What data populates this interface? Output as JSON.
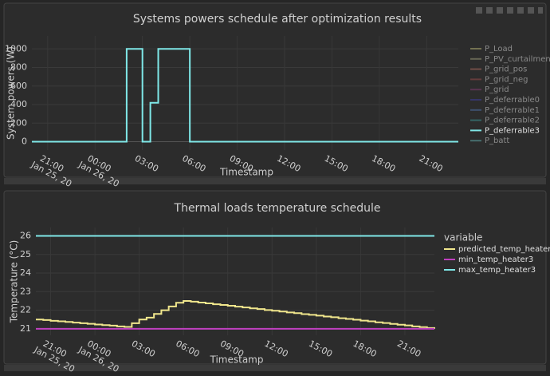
{
  "chart_data": [
    {
      "type": "line",
      "title": "Systems powers schedule after optimization results",
      "x_label": "Timestamp",
      "y_label": "System powers (W)",
      "line_shape": "hv",
      "grid": true,
      "categories": [
        null,
        null,
        "21:00\nJan 25, 20",
        null,
        null,
        null,
        null,
        null,
        "00:00\nJan 26, 20",
        null,
        null,
        null,
        null,
        null,
        "03:00",
        null,
        null,
        null,
        null,
        null,
        "06:00",
        null,
        null,
        null,
        null,
        null,
        "09:00",
        null,
        null,
        null,
        null,
        null,
        "12:00",
        null,
        null,
        null,
        null,
        null,
        "15:00",
        null,
        null,
        null,
        null,
        null,
        "18:00",
        null,
        null,
        null,
        null,
        null,
        "21:00",
        null,
        null,
        null,
        null
      ],
      "ylim": [
        -90,
        1140
      ],
      "yticks": [
        0,
        200,
        400,
        600,
        800,
        1000
      ],
      "series": [
        {
          "name": "P_Load",
          "color": "#a3a06a",
          "hidden": true
        },
        {
          "name": "P_PV_curtailment",
          "color": "#8e8c70",
          "hidden": true
        },
        {
          "name": "P_grid_pos",
          "color": "#a0645a",
          "hidden": true
        },
        {
          "name": "P_grid_neg",
          "color": "#8c4848",
          "hidden": true
        },
        {
          "name": "P_grid",
          "color": "#7a3a6a",
          "hidden": true
        },
        {
          "name": "P_deferrable0",
          "color": "#3c3c90",
          "hidden": true
        },
        {
          "name": "P_deferrable1",
          "color": "#4a6a9c",
          "hidden": true
        },
        {
          "name": "P_deferrable2",
          "color": "#3a8c8c",
          "hidden": true
        },
        {
          "name": "P_deferrable3",
          "color": "#7fe8e8",
          "hidden": false,
          "values": [
            0,
            0,
            0,
            0,
            0,
            0,
            0,
            0,
            0,
            0,
            0,
            0,
            1000,
            1000,
            0,
            420,
            1000,
            1000,
            1000,
            1000,
            0,
            0,
            0,
            0,
            0,
            0,
            0,
            0,
            0,
            0,
            0,
            0,
            0,
            0,
            0,
            0,
            0,
            0,
            0,
            0,
            0,
            0,
            0,
            0,
            0,
            0,
            0,
            0,
            0,
            0,
            0,
            0,
            0,
            0,
            0
          ]
        },
        {
          "name": "P_batt",
          "color": "#5a9c9c",
          "hidden": true
        }
      ]
    },
    {
      "type": "line",
      "title": "Thermal loads temperature schedule",
      "x_label": "Timestamp",
      "y_label": "Temperature (°C)",
      "legend_title": "variable",
      "line_shape": "hv",
      "grid": true,
      "categories": [
        null,
        null,
        "21:00\nJan 25, 20",
        null,
        null,
        null,
        null,
        null,
        "00:00\nJan 26, 20",
        null,
        null,
        null,
        null,
        null,
        "03:00",
        null,
        null,
        null,
        null,
        null,
        "06:00",
        null,
        null,
        null,
        null,
        null,
        "09:00",
        null,
        null,
        null,
        null,
        null,
        "12:00",
        null,
        null,
        null,
        null,
        null,
        "15:00",
        null,
        null,
        null,
        null,
        null,
        "18:00",
        null,
        null,
        null,
        null,
        null,
        "21:00",
        null,
        null,
        null,
        null
      ],
      "ylim": [
        20.65,
        26.45
      ],
      "yticks": [
        21,
        22,
        23,
        24,
        25,
        26
      ],
      "series": [
        {
          "name": "predicted_temp_heater3",
          "color": "#f0e68c",
          "hidden": false,
          "values": [
            21.5,
            21.47,
            21.43,
            21.4,
            21.37,
            21.33,
            21.3,
            21.27,
            21.23,
            21.2,
            21.17,
            21.13,
            21.1,
            21.3,
            21.5,
            21.6,
            21.8,
            22.0,
            22.2,
            22.4,
            22.5,
            22.46,
            22.41,
            22.37,
            22.32,
            22.28,
            22.24,
            22.19,
            22.15,
            22.1,
            22.06,
            22.01,
            21.97,
            21.93,
            21.88,
            21.84,
            21.79,
            21.75,
            21.71,
            21.66,
            21.62,
            21.57,
            21.53,
            21.49,
            21.44,
            21.4,
            21.35,
            21.31,
            21.26,
            21.22,
            21.18,
            21.13,
            21.09,
            21.04,
            21.0
          ]
        },
        {
          "name": "min_temp_heater3",
          "color": "#c040c0",
          "hidden": false,
          "values": [
            21,
            21,
            21,
            21,
            21,
            21,
            21,
            21,
            21,
            21,
            21,
            21,
            21,
            21,
            21,
            21,
            21,
            21,
            21,
            21,
            21,
            21,
            21,
            21,
            21,
            21,
            21,
            21,
            21,
            21,
            21,
            21,
            21,
            21,
            21,
            21,
            21,
            21,
            21,
            21,
            21,
            21,
            21,
            21,
            21,
            21,
            21,
            21,
            21,
            21,
            21,
            21,
            21,
            21,
            21
          ]
        },
        {
          "name": "max_temp_heater3",
          "color": "#7fe8e8",
          "hidden": false,
          "values": [
            26,
            26,
            26,
            26,
            26,
            26,
            26,
            26,
            26,
            26,
            26,
            26,
            26,
            26,
            26,
            26,
            26,
            26,
            26,
            26,
            26,
            26,
            26,
            26,
            26,
            26,
            26,
            26,
            26,
            26,
            26,
            26,
            26,
            26,
            26,
            26,
            26,
            26,
            26,
            26,
            26,
            26,
            26,
            26,
            26,
            26,
            26,
            26,
            26,
            26,
            26,
            26,
            26,
            26,
            26
          ]
        }
      ]
    }
  ]
}
